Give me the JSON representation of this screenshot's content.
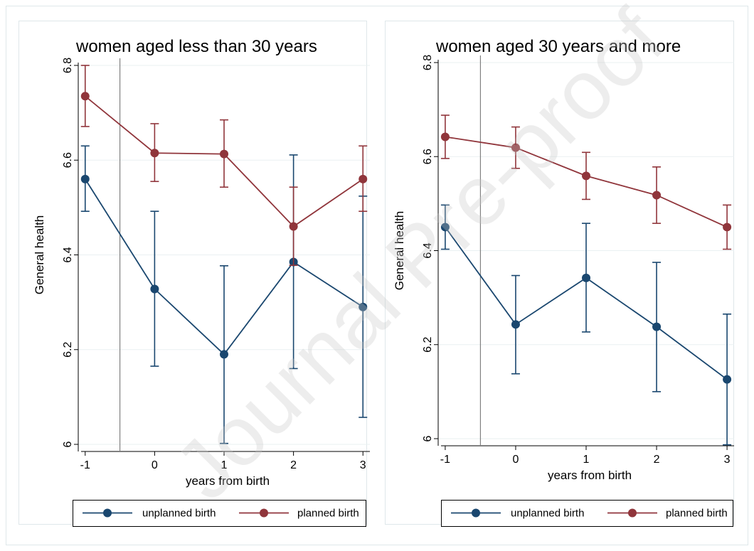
{
  "watermark": "Journal Pre-proof",
  "colors": {
    "unplanned": "#1a476f",
    "planned": "#90353b",
    "reference_line": "#808080",
    "grid": "#eaf0f2",
    "panel_border": "#dfe7ea"
  },
  "chart_data": [
    {
      "type": "line",
      "title": "women aged less than 30 years",
      "xlabel": "years from birth",
      "ylabel": "General health",
      "x": [
        -1,
        0,
        1,
        2,
        3
      ],
      "x_ticks": [
        "-1",
        "0",
        "1",
        "2",
        "3"
      ],
      "y_ticks": [
        "6",
        "6.2",
        "6.4",
        "6.6",
        "6.8"
      ],
      "ylim": [
        6.0,
        6.8
      ],
      "reference_line_x": -0.5,
      "grid": true,
      "legend_position": "bottom",
      "series": [
        {
          "name": "unplanned birth",
          "color": "#1a476f",
          "values": [
            6.56,
            6.328,
            6.19,
            6.385,
            6.29
          ],
          "ci_low": [
            6.492,
            6.165,
            6.002,
            6.16,
            6.057
          ],
          "ci_high": [
            6.63,
            6.492,
            6.377,
            6.611,
            6.524
          ]
        },
        {
          "name": "planned birth",
          "color": "#90353b",
          "values": [
            6.735,
            6.615,
            6.613,
            6.46,
            6.56
          ],
          "ci_low": [
            6.671,
            6.555,
            6.543,
            6.378,
            6.492
          ],
          "ci_high": [
            6.8,
            6.677,
            6.685,
            6.543,
            6.63
          ]
        }
      ]
    },
    {
      "type": "line",
      "title": "women aged 30 years and more",
      "xlabel": "years from birth",
      "ylabel": "General health",
      "x": [
        -1,
        0,
        1,
        2,
        3
      ],
      "x_ticks": [
        "-1",
        "0",
        "1",
        "2",
        "3"
      ],
      "y_ticks": [
        "6",
        "6.2",
        "6.4",
        "6.6",
        "6.8"
      ],
      "ylim": [
        6.0,
        6.8
      ],
      "reference_line_x": -0.5,
      "grid": true,
      "legend_position": "bottom",
      "series": [
        {
          "name": "unplanned birth",
          "color": "#1a476f",
          "values": [
            6.45,
            6.243,
            6.342,
            6.238,
            6.126
          ],
          "ci_low": [
            6.403,
            6.138,
            6.227,
            6.1,
            5.987
          ],
          "ci_high": [
            6.497,
            6.347,
            6.458,
            6.375,
            6.265
          ]
        },
        {
          "name": "planned birth",
          "color": "#90353b",
          "values": [
            6.642,
            6.619,
            6.559,
            6.518,
            6.45
          ],
          "ci_low": [
            6.596,
            6.575,
            6.509,
            6.458,
            6.403
          ],
          "ci_high": [
            6.688,
            6.663,
            6.609,
            6.578,
            6.497
          ]
        }
      ]
    }
  ]
}
